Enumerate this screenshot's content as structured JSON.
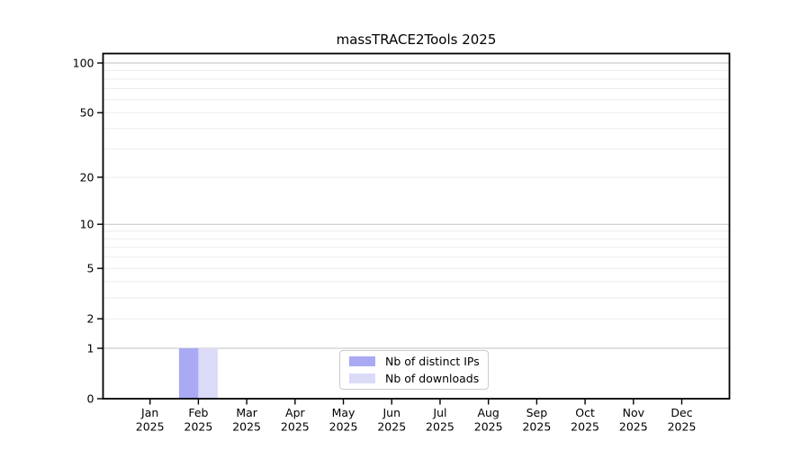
{
  "title": "massTRACE2Tools 2025",
  "chart_data": {
    "type": "bar",
    "title": "massTRACE2Tools 2025",
    "categories": [
      "Jan 2025",
      "Feb 2025",
      "Mar 2025",
      "Apr 2025",
      "May 2025",
      "Jun 2025",
      "Jul 2025",
      "Aug 2025",
      "Sep 2025",
      "Oct 2025",
      "Nov 2025",
      "Dec 2025"
    ],
    "x_tick_labels_line1": [
      "Jan",
      "Feb",
      "Mar",
      "Apr",
      "May",
      "Jun",
      "Jul",
      "Aug",
      "Sep",
      "Oct",
      "Nov",
      "Dec"
    ],
    "x_tick_labels_line2": [
      "2025",
      "2025",
      "2025",
      "2025",
      "2025",
      "2025",
      "2025",
      "2025",
      "2025",
      "2025",
      "2025",
      "2025"
    ],
    "series": [
      {
        "name": "Nb of distinct IPs",
        "color": "#a9a9f4",
        "values": [
          0,
          1,
          0,
          0,
          0,
          0,
          0,
          0,
          0,
          0,
          0,
          0
        ]
      },
      {
        "name": "Nb of downloads",
        "color": "#dbdbf8",
        "values": [
          0,
          1,
          0,
          0,
          0,
          0,
          0,
          0,
          0,
          0,
          0,
          0
        ]
      }
    ],
    "yscale": "log1p",
    "y_ticks": [
      0,
      1,
      2,
      5,
      10,
      20,
      50,
      100
    ],
    "y_minor_ticks": [
      3,
      4,
      6,
      7,
      8,
      9,
      30,
      40,
      60,
      70,
      80,
      90
    ],
    "ylim": [
      0,
      115
    ],
    "grid": true,
    "legend_position": "lower-center"
  },
  "colors": {
    "background": "#ffffff",
    "axis": "#000000",
    "text": "#000000",
    "grid_decade": "#c2c2c2",
    "grid_minor": "#ebebeb",
    "legend_border": "#cccccc"
  }
}
